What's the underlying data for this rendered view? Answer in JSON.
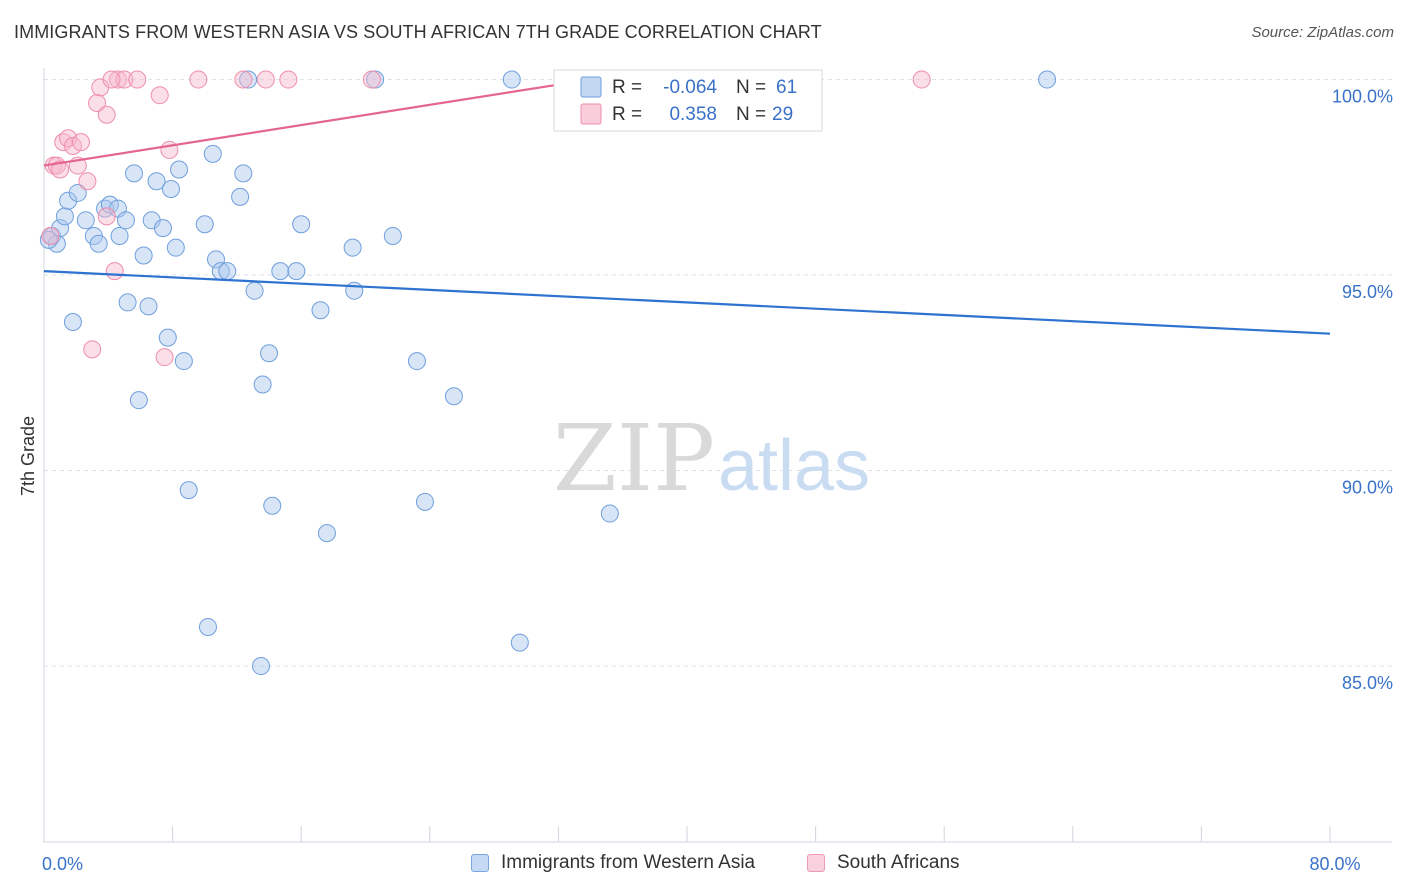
{
  "title": "IMMIGRANTS FROM WESTERN ASIA VS SOUTH AFRICAN 7TH GRADE CORRELATION CHART",
  "source": "Source: ZipAtlas.com",
  "watermark": {
    "zip": "ZIP",
    "atlas": "atlas"
  },
  "colors": {
    "blue_fill": "#a9c6ee",
    "blue_stroke": "#6f9fdc",
    "blue_line": "#2e73cf",
    "pink_fill": "#f6b8cb",
    "pink_stroke": "#ee8eac",
    "pink_line": "#e4668f",
    "axis_text": "#3a72c9",
    "grid": "#dde3ea"
  },
  "legend_top": {
    "rows": [
      {
        "r_label": "R =",
        "r_value": "-0.064",
        "n_label": "N =",
        "n_value": "61",
        "color": "blue"
      },
      {
        "r_label": "R =",
        "r_value": "0.358",
        "n_label": "N =",
        "n_value": "29",
        "color": "pink"
      }
    ]
  },
  "legend_bottom": [
    {
      "label": "Immigrants from Western Asia",
      "color": "blue"
    },
    {
      "label": "South Africans",
      "color": "pink"
    }
  ],
  "chart_data": {
    "type": "scatter",
    "xlabel": "",
    "ylabel": "7th Grade",
    "xlim": [
      0,
      80
    ],
    "ylim": [
      80.5,
      100.5
    ],
    "x_tick_labels": [
      {
        "value": 0,
        "label": "0.0%"
      },
      {
        "value": 80,
        "label": "80.0%"
      }
    ],
    "y_tick_labels": [
      {
        "value": 100,
        "label": "100.0%"
      },
      {
        "value": 95,
        "label": "95.0%"
      },
      {
        "value": 90,
        "label": "90.0%"
      },
      {
        "value": 85,
        "label": "85.0%"
      }
    ],
    "x_minor_ticks": [
      0,
      8,
      16,
      24,
      32,
      40,
      48,
      56,
      64,
      72,
      80
    ],
    "grid": true,
    "legend_position": "top-center",
    "series": [
      {
        "name": "Immigrants from Western Asia",
        "color": "blue",
        "trend": {
          "x": [
            0,
            80
          ],
          "y": [
            95.1,
            93.5
          ]
        },
        "points": [
          [
            0.5,
            96.0
          ],
          [
            0.8,
            95.8
          ],
          [
            1.0,
            96.2
          ],
          [
            1.3,
            96.5
          ],
          [
            1.5,
            96.9
          ],
          [
            1.8,
            93.8
          ],
          [
            2.1,
            97.1
          ],
          [
            2.6,
            96.4
          ],
          [
            3.1,
            96.0
          ],
          [
            3.4,
            95.8
          ],
          [
            3.8,
            96.7
          ],
          [
            4.1,
            96.8
          ],
          [
            4.6,
            96.7
          ],
          [
            4.7,
            96.0
          ],
          [
            5.1,
            96.4
          ],
          [
            5.2,
            94.3
          ],
          [
            5.6,
            97.6
          ],
          [
            5.9,
            91.8
          ],
          [
            6.2,
            95.5
          ],
          [
            6.5,
            94.2
          ],
          [
            6.7,
            96.4
          ],
          [
            7.0,
            97.4
          ],
          [
            7.4,
            96.2
          ],
          [
            7.7,
            93.4
          ],
          [
            7.9,
            97.2
          ],
          [
            8.2,
            95.7
          ],
          [
            8.4,
            97.7
          ],
          [
            8.7,
            92.8
          ],
          [
            9.0,
            89.5
          ],
          [
            10.0,
            96.3
          ],
          [
            10.2,
            86.0
          ],
          [
            10.5,
            98.1
          ],
          [
            10.7,
            95.4
          ],
          [
            11.0,
            95.1
          ],
          [
            11.4,
            95.1
          ],
          [
            12.2,
            97.0
          ],
          [
            12.4,
            97.6
          ],
          [
            12.7,
            100.0
          ],
          [
            13.1,
            94.6
          ],
          [
            13.5,
            85.0
          ],
          [
            13.6,
            92.2
          ],
          [
            14.0,
            93.0
          ],
          [
            14.2,
            89.1
          ],
          [
            14.7,
            95.1
          ],
          [
            15.7,
            95.1
          ],
          [
            16.0,
            96.3
          ],
          [
            17.2,
            94.1
          ],
          [
            17.6,
            88.4
          ],
          [
            19.2,
            95.7
          ],
          [
            19.3,
            94.6
          ],
          [
            20.6,
            100.0
          ],
          [
            21.7,
            96.0
          ],
          [
            23.2,
            92.8
          ],
          [
            23.7,
            89.2
          ],
          [
            25.5,
            91.9
          ],
          [
            29.1,
            100.0
          ],
          [
            29.6,
            85.6
          ],
          [
            35.2,
            88.9
          ],
          [
            41.3,
            100.0
          ],
          [
            62.4,
            100.0
          ],
          [
            0.3,
            95.9
          ]
        ]
      },
      {
        "name": "South Africans",
        "color": "pink",
        "trend": {
          "x": [
            0,
            34
          ],
          "y": [
            97.8,
            100.0
          ]
        },
        "points": [
          [
            0.4,
            96.0
          ],
          [
            0.6,
            97.8
          ],
          [
            0.8,
            97.8
          ],
          [
            1.0,
            97.7
          ],
          [
            1.2,
            98.4
          ],
          [
            1.5,
            98.5
          ],
          [
            1.8,
            98.3
          ],
          [
            2.1,
            97.8
          ],
          [
            2.3,
            98.4
          ],
          [
            2.7,
            97.4
          ],
          [
            3.3,
            99.4
          ],
          [
            3.5,
            99.8
          ],
          [
            3.9,
            99.1
          ],
          [
            4.4,
            95.1
          ],
          [
            4.6,
            100.0
          ],
          [
            5.0,
            100.0
          ],
          [
            5.8,
            100.0
          ],
          [
            7.2,
            99.6
          ],
          [
            7.5,
            92.9
          ],
          [
            7.8,
            98.2
          ],
          [
            9.6,
            100.0
          ],
          [
            12.4,
            100.0
          ],
          [
            13.8,
            100.0
          ],
          [
            15.2,
            100.0
          ],
          [
            20.4,
            100.0
          ],
          [
            54.6,
            100.0
          ],
          [
            3.0,
            93.1
          ],
          [
            3.9,
            96.5
          ],
          [
            4.2,
            100.0
          ]
        ]
      }
    ]
  }
}
